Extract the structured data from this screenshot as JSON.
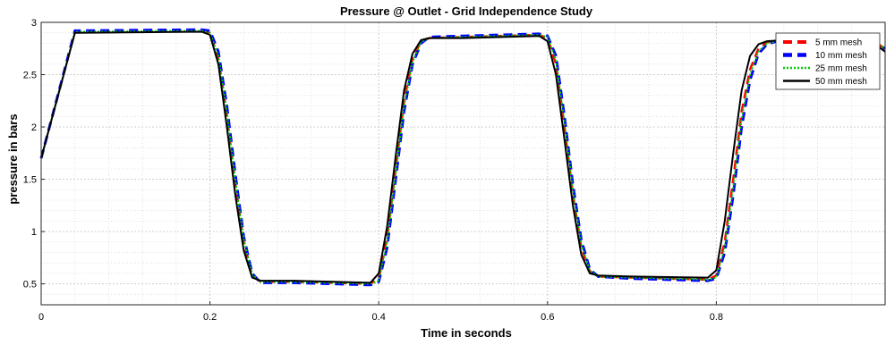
{
  "chart_data": {
    "type": "line",
    "title": "Pressure @ Outlet - Grid Independence Study",
    "xlabel": "Time in seconds",
    "ylabel": "pressure in bars",
    "xlim": [
      0,
      1.0
    ],
    "ylim": [
      0.3,
      3.0
    ],
    "xticks": [
      0,
      0.2,
      0.4,
      0.6,
      0.8
    ],
    "xtick_labels": [
      "0",
      "0.2",
      "0.4",
      "0.6",
      "0.8"
    ],
    "yticks": [
      0.5,
      1,
      1.5,
      2,
      2.5,
      3
    ],
    "ytick_labels": [
      "0.5",
      "1",
      "1.5",
      "2",
      "2.5",
      "3"
    ],
    "grid": true,
    "minor_grid": true,
    "legend_position": "top-right",
    "series": [
      {
        "name": "5 mm mesh",
        "color": "#ff0000",
        "style": "dashed",
        "x": [
          0,
          0.04,
          0.19,
          0.2,
          0.21,
          0.22,
          0.23,
          0.24,
          0.25,
          0.26,
          0.3,
          0.39,
          0.4,
          0.41,
          0.42,
          0.43,
          0.44,
          0.45,
          0.46,
          0.5,
          0.59,
          0.6,
          0.61,
          0.62,
          0.63,
          0.64,
          0.65,
          0.66,
          0.7,
          0.79,
          0.8,
          0.81,
          0.82,
          0.83,
          0.84,
          0.85,
          0.86,
          0.88,
          0.92,
          0.96,
          0.99,
          1.0
        ],
        "y": [
          1.7,
          2.91,
          2.92,
          2.9,
          2.65,
          2.1,
          1.45,
          0.9,
          0.58,
          0.52,
          0.52,
          0.5,
          0.55,
          0.95,
          1.6,
          2.25,
          2.65,
          2.82,
          2.85,
          2.86,
          2.88,
          2.85,
          2.6,
          2.0,
          1.35,
          0.85,
          0.62,
          0.57,
          0.56,
          0.54,
          0.58,
          0.9,
          1.5,
          2.15,
          2.55,
          2.75,
          2.81,
          2.83,
          2.84,
          2.83,
          2.8,
          2.75
        ]
      },
      {
        "name": "10 mm mesh",
        "color": "#0000ff",
        "style": "dashed",
        "x": [
          0,
          0.04,
          0.19,
          0.2,
          0.21,
          0.22,
          0.23,
          0.24,
          0.25,
          0.26,
          0.3,
          0.39,
          0.4,
          0.41,
          0.42,
          0.43,
          0.44,
          0.45,
          0.46,
          0.5,
          0.59,
          0.6,
          0.61,
          0.62,
          0.63,
          0.64,
          0.65,
          0.66,
          0.7,
          0.79,
          0.8,
          0.81,
          0.82,
          0.83,
          0.84,
          0.85,
          0.86,
          0.88,
          0.92,
          0.96,
          0.99,
          1.0
        ],
        "y": [
          1.7,
          2.92,
          2.93,
          2.92,
          2.72,
          2.2,
          1.55,
          0.95,
          0.6,
          0.51,
          0.51,
          0.49,
          0.52,
          0.85,
          1.5,
          2.15,
          2.6,
          2.8,
          2.86,
          2.87,
          2.89,
          2.87,
          2.68,
          2.1,
          1.45,
          0.92,
          0.64,
          0.57,
          0.55,
          0.53,
          0.55,
          0.8,
          1.35,
          2.0,
          2.45,
          2.7,
          2.79,
          2.84,
          2.85,
          2.84,
          2.8,
          2.75
        ]
      },
      {
        "name": "25 mm mesh",
        "color": "#00cc00",
        "style": "dotted",
        "x": [
          0,
          0.04,
          0.19,
          0.2,
          0.21,
          0.22,
          0.23,
          0.24,
          0.25,
          0.26,
          0.3,
          0.39,
          0.4,
          0.41,
          0.42,
          0.43,
          0.44,
          0.45,
          0.46,
          0.5,
          0.59,
          0.6,
          0.61,
          0.62,
          0.63,
          0.64,
          0.65,
          0.66,
          0.7,
          0.79,
          0.8,
          0.81,
          0.82,
          0.83,
          0.84,
          0.85,
          0.86,
          0.88,
          0.92,
          0.96,
          0.99,
          1.0
        ],
        "y": [
          1.7,
          2.91,
          2.92,
          2.9,
          2.68,
          2.15,
          1.5,
          0.93,
          0.59,
          0.52,
          0.52,
          0.5,
          0.53,
          0.9,
          1.55,
          2.2,
          2.62,
          2.81,
          2.85,
          2.86,
          2.88,
          2.86,
          2.64,
          2.05,
          1.4,
          0.88,
          0.63,
          0.57,
          0.56,
          0.54,
          0.56,
          0.85,
          1.42,
          2.08,
          2.5,
          2.72,
          2.8,
          2.83,
          2.84,
          2.83,
          2.8,
          2.75
        ]
      },
      {
        "name": "50 mm mesh",
        "color": "#000000",
        "style": "solid",
        "x": [
          0,
          0.04,
          0.19,
          0.2,
          0.21,
          0.22,
          0.23,
          0.24,
          0.25,
          0.26,
          0.3,
          0.39,
          0.4,
          0.41,
          0.42,
          0.43,
          0.44,
          0.45,
          0.46,
          0.5,
          0.59,
          0.6,
          0.61,
          0.62,
          0.63,
          0.64,
          0.65,
          0.66,
          0.7,
          0.79,
          0.8,
          0.81,
          0.82,
          0.83,
          0.84,
          0.85,
          0.86,
          0.88,
          0.92,
          0.96,
          0.99,
          1.0
        ],
        "y": [
          1.7,
          2.9,
          2.91,
          2.88,
          2.6,
          2.0,
          1.35,
          0.82,
          0.56,
          0.53,
          0.53,
          0.51,
          0.6,
          1.05,
          1.72,
          2.35,
          2.7,
          2.83,
          2.85,
          2.85,
          2.87,
          2.82,
          2.5,
          1.88,
          1.25,
          0.78,
          0.6,
          0.58,
          0.57,
          0.56,
          0.63,
          1.1,
          1.75,
          2.35,
          2.68,
          2.79,
          2.82,
          2.83,
          2.82,
          2.81,
          2.78,
          2.72
        ]
      }
    ]
  }
}
